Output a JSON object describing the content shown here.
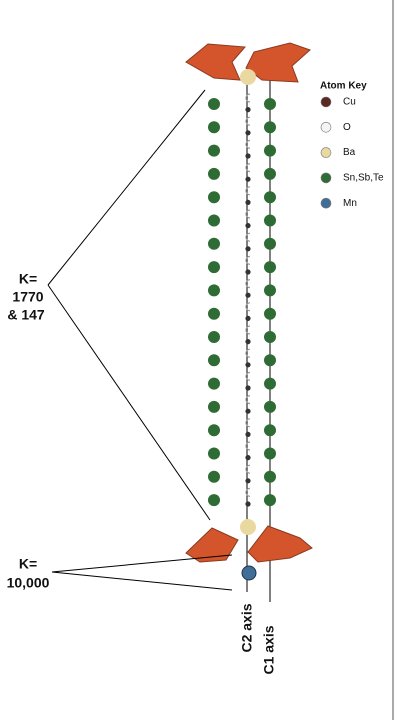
{
  "legend": {
    "title": "Atom Key",
    "items": [
      {
        "label": "Cu",
        "color": "#5a2a22"
      },
      {
        "label": "O",
        "color": "#f4f4f4"
      },
      {
        "label": "Ba",
        "color": "#e9d9a0"
      },
      {
        "label": "Sn,Sb,Te",
        "color": "#2f6b35"
      },
      {
        "label": "Mn",
        "color": "#3f6f98"
      }
    ]
  },
  "labels": {
    "k_upper": [
      "K=",
      "1770",
      "& 147"
    ],
    "k_lower": [
      "K=",
      "10,000"
    ],
    "c2_axis": "C2 axis",
    "c1_axis": "C1 axis"
  }
}
